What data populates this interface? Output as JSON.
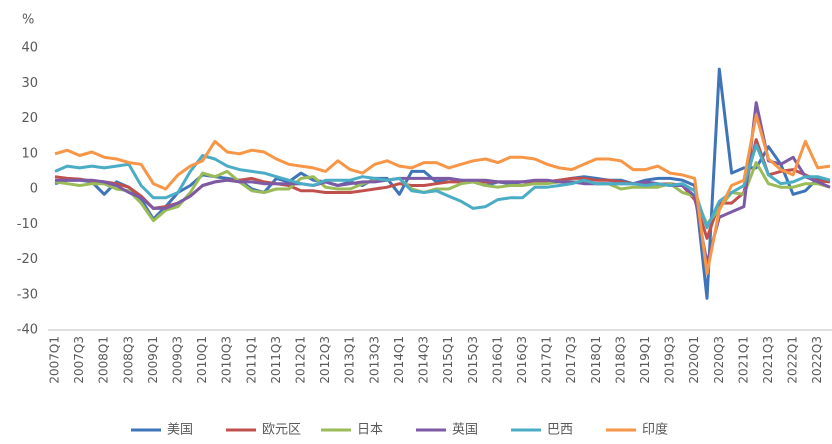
{
  "chart_data": {
    "type": "line",
    "y_label": "%",
    "categories": [
      "2007Q1",
      null,
      "2007Q3",
      null,
      "2008Q1",
      null,
      "2008Q3",
      null,
      "2009Q1",
      null,
      "2009Q3",
      null,
      "2010Q1",
      null,
      "2010Q3",
      null,
      "2011Q1",
      null,
      "2011Q3",
      null,
      "2012Q1",
      null,
      "2012Q3",
      null,
      "2013Q1",
      null,
      "2013Q3",
      null,
      "2014Q1",
      null,
      "2014Q3",
      null,
      "2015Q1",
      null,
      "2015Q3",
      null,
      "2016Q1",
      null,
      "2016Q3",
      null,
      "2017Q1",
      null,
      "2017Q3",
      null,
      "2018Q1",
      null,
      "2018Q3",
      null,
      "2019Q1",
      null,
      "2019Q3",
      null,
      "2020Q1",
      null,
      "2020Q3",
      null,
      "2021Q1",
      null,
      "2021Q3",
      null,
      "2022Q1",
      null,
      "2022Q3",
      null
    ],
    "ylim": [
      -40,
      40
    ],
    "yticks": [
      -40,
      -30,
      -20,
      -10,
      0,
      10,
      20,
      30,
      40
    ],
    "grid": false,
    "legend": "bottom",
    "series": [
      {
        "name": "美国",
        "color": "#3f74b8",
        "values": [
          1.5,
          2.5,
          2.5,
          2,
          -1.5,
          2,
          0.5,
          -3,
          -8.5,
          -5,
          -1,
          1,
          4,
          3.5,
          3,
          2.5,
          0,
          -1,
          3,
          2,
          4.5,
          2.5,
          2,
          1,
          2,
          1,
          3,
          3,
          -1.5,
          5,
          5,
          2,
          3,
          2.5,
          2,
          1,
          2,
          1.5,
          2,
          2,
          2,
          2.5,
          3,
          3.5,
          3,
          2.5,
          2.5,
          1.5,
          2.5,
          3,
          3,
          2.5,
          1,
          -31,
          34,
          4.5,
          6,
          6,
          12,
          7,
          -1.5,
          -0.5,
          3,
          2.5
        ]
      },
      {
        "name": "欧元区",
        "color": "#c0504d",
        "values": [
          3.5,
          3,
          2.8,
          2.2,
          2,
          1.5,
          0.5,
          -2,
          -5.5,
          -5,
          -4,
          -2,
          1,
          2,
          2.5,
          2.5,
          3,
          2,
          1.5,
          1,
          -0.5,
          -0.5,
          -1,
          -1,
          -1,
          -0.5,
          0,
          0.5,
          1.5,
          1,
          1,
          1.5,
          2,
          2,
          2,
          2,
          2,
          2,
          2,
          2,
          2,
          2.5,
          3,
          3,
          2.5,
          2.5,
          2,
          1.5,
          1.5,
          1.3,
          1.5,
          1,
          -3,
          -14,
          -4,
          -4,
          -1,
          14,
          4,
          5,
          5.5,
          4,
          2.3,
          2
        ]
      },
      {
        "name": "日本",
        "color": "#9bbb59",
        "values": [
          2,
          1.5,
          1,
          1.5,
          1.5,
          0,
          -0.5,
          -4,
          -9,
          -6,
          -5,
          -1,
          4.5,
          3.5,
          5,
          2,
          -0.5,
          -1,
          0,
          0,
          3,
          3.5,
          0.5,
          0,
          0,
          1.5,
          2.5,
          2.5,
          3,
          0,
          -1,
          0,
          0,
          1.5,
          2,
          1,
          0.5,
          1,
          1,
          1.5,
          1.5,
          2,
          2,
          2,
          1.5,
          1.5,
          0,
          0.5,
          0.5,
          0.5,
          1.5,
          -1,
          -2,
          -10,
          -5.5,
          -1,
          -1.5,
          7.5,
          1.5,
          0.5,
          0.5,
          1.5,
          1.5,
          0.5
        ]
      },
      {
        "name": "英国",
        "color": "#7d5aa6",
        "values": [
          2.5,
          2.5,
          2.5,
          2.5,
          2,
          1,
          -1,
          -2.5,
          -5.5,
          -5.5,
          -4,
          -2,
          1,
          2,
          2.5,
          2,
          2,
          1.5,
          1.5,
          1.5,
          1.5,
          1,
          2,
          1,
          1.5,
          2,
          2,
          2.5,
          3,
          3,
          3,
          3,
          3,
          2.5,
          2.5,
          2.5,
          2,
          2,
          2,
          2.5,
          2.5,
          2,
          2,
          1.5,
          1.5,
          1.5,
          1.5,
          1.5,
          2,
          1.5,
          1,
          1,
          -2,
          -21,
          -8,
          -6.5,
          -5,
          24.5,
          8,
          7,
          9,
          3.5,
          2,
          0.5
        ]
      },
      {
        "name": "巴西",
        "color": "#4bacc6",
        "values": [
          5,
          6.5,
          6,
          6.5,
          6,
          6.5,
          7,
          1,
          -2.5,
          -2.5,
          -1,
          5,
          9.5,
          8.5,
          6.5,
          5.5,
          5,
          4.5,
          3.5,
          2.5,
          1.5,
          1,
          2.5,
          2.5,
          2.5,
          3.5,
          3,
          2.5,
          3,
          -0.5,
          -1,
          -0.5,
          -2,
          -3.5,
          -5.5,
          -5,
          -3,
          -2.5,
          -2.5,
          0.5,
          0.5,
          1,
          1.5,
          2.5,
          1.5,
          1.5,
          1.5,
          1.5,
          1,
          1.5,
          1,
          1.5,
          -0.5,
          -11,
          -3.5,
          -1,
          1,
          12.5,
          4,
          1.5,
          2,
          3.5,
          3.5,
          2.5
        ]
      },
      {
        "name": "印度",
        "color": "#f79646",
        "values": [
          10,
          11,
          9.5,
          10.5,
          9,
          8.5,
          7.5,
          7,
          1.5,
          0,
          4,
          6.5,
          8,
          13.5,
          10.5,
          10,
          11,
          10.5,
          8.5,
          7,
          6.5,
          6,
          5,
          8,
          5.5,
          4.5,
          7,
          8,
          6.5,
          6,
          7.5,
          7.5,
          6,
          7,
          8,
          8.5,
          7.5,
          9,
          9,
          8.5,
          7,
          6,
          5.5,
          7,
          8.5,
          8.5,
          8,
          5.5,
          5.5,
          6.5,
          4.5,
          4,
          3,
          -24,
          -6,
          1,
          2.5,
          21,
          8.5,
          5.5,
          4,
          13.5,
          6,
          6.5
        ]
      }
    ]
  }
}
